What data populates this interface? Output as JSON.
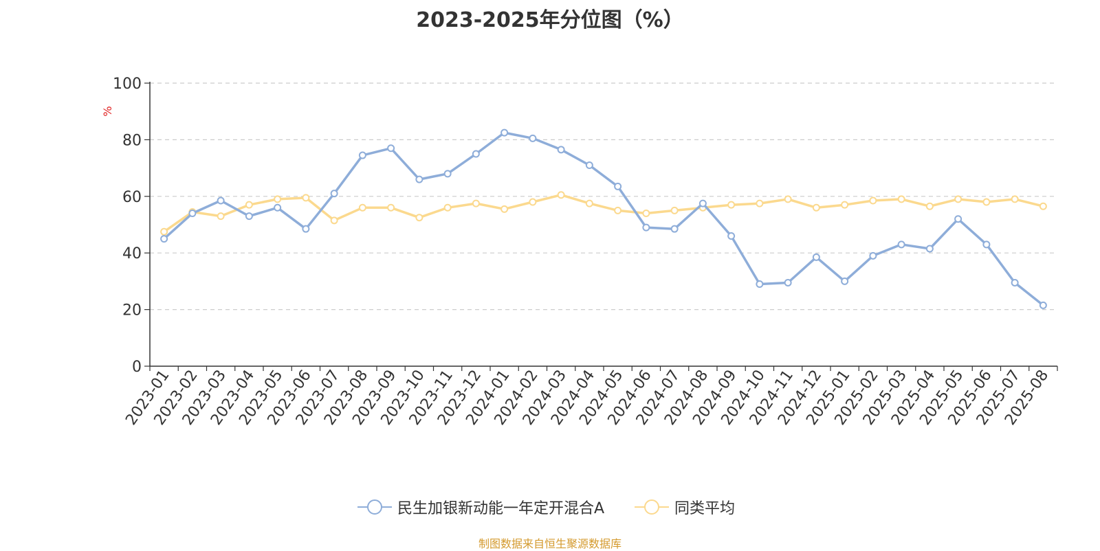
{
  "chart_data": {
    "type": "line",
    "title": "2023-2025年分位图（%）",
    "ylabel": "%",
    "ylim": [
      0,
      100
    ],
    "yticks": [
      0,
      20,
      40,
      60,
      80,
      100
    ],
    "grid": true,
    "legend_position": "bottom-center",
    "categories": [
      "2023-01",
      "2023-02",
      "2023-03",
      "2023-04",
      "2023-05",
      "2023-06",
      "2023-07",
      "2023-08",
      "2023-09",
      "2023-10",
      "2023-11",
      "2023-12",
      "2024-01",
      "2024-02",
      "2024-03",
      "2024-04",
      "2024-05",
      "2024-06",
      "2024-07",
      "2024-08",
      "2024-09",
      "2024-10",
      "2024-11",
      "2024-12",
      "2025-01",
      "2025-02",
      "2025-03",
      "2025-04",
      "2025-05",
      "2025-06",
      "2025-07",
      "2025-08"
    ],
    "series": [
      {
        "name": "民生加银新动能一年定开混合A",
        "color": "#8eadd9",
        "values": [
          45,
          54,
          58.5,
          53,
          56,
          48.5,
          61,
          74.5,
          77,
          66,
          68,
          75,
          82.5,
          80.5,
          76.5,
          71,
          63.5,
          49,
          48.5,
          57.5,
          46,
          29,
          29.5,
          38.5,
          30,
          39,
          43,
          41.5,
          52,
          43,
          29.5,
          21.5
        ]
      },
      {
        "name": "同类平均",
        "color": "#fbd98e",
        "values": [
          47.5,
          54.5,
          53,
          57,
          59,
          59.5,
          51.5,
          56,
          56,
          52.5,
          56,
          57.5,
          55.5,
          58,
          60.5,
          57.5,
          55,
          54,
          55,
          56,
          57,
          57.5,
          59,
          56,
          57,
          58.5,
          59,
          56.5,
          59,
          58,
          59,
          56.5
        ]
      }
    ]
  },
  "footer": {
    "source": "制图数据来自恒生聚源数据库",
    "source_color": "#d49a2e"
  },
  "colors": {
    "axis": "#333333",
    "grid": "#cccccc",
    "ylabel": "#e02020"
  }
}
